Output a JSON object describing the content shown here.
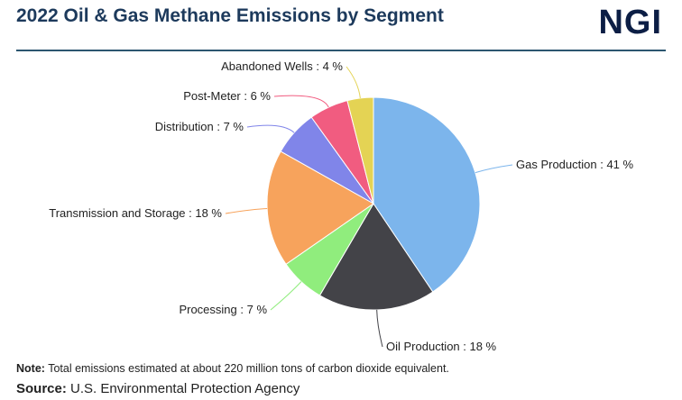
{
  "header": {
    "title": "2022 Oil & Gas Methane Emissions by Segment",
    "logo_text": "NGI"
  },
  "chart_data": {
    "type": "pie",
    "title": "2022 Oil & Gas Methane Emissions by Segment",
    "slices": [
      {
        "label": "Gas Production",
        "value": 41,
        "display": "Gas Production : 41 %",
        "color": "#7cb5ec"
      },
      {
        "label": "Oil Production",
        "value": 18,
        "display": "Oil Production : 18 %",
        "color": "#434348"
      },
      {
        "label": "Processing",
        "value": 7,
        "display": "Processing : 7 %",
        "color": "#90ed7d"
      },
      {
        "label": "Transmission and Storage",
        "value": 18,
        "display": "Transmission and Storage : 18 %",
        "color": "#f7a35c"
      },
      {
        "label": "Distribution",
        "value": 7,
        "display": "Distribution : 7 %",
        "color": "#8085e9"
      },
      {
        "label": "Post-Meter",
        "value": 6,
        "display": "Post-Meter : 6 %",
        "color": "#f15c80"
      },
      {
        "label": "Abandoned Wells",
        "value": 4,
        "display": "Abandoned Wells : 4 %",
        "color": "#e4d354"
      }
    ]
  },
  "footer": {
    "note_label": "Note:",
    "note_text": " Total emissions estimated at about 220 million tons of carbon dioxide equivalent.",
    "source_label": "Source:",
    "source_text": " U.S. Environmental Protection Agency"
  }
}
